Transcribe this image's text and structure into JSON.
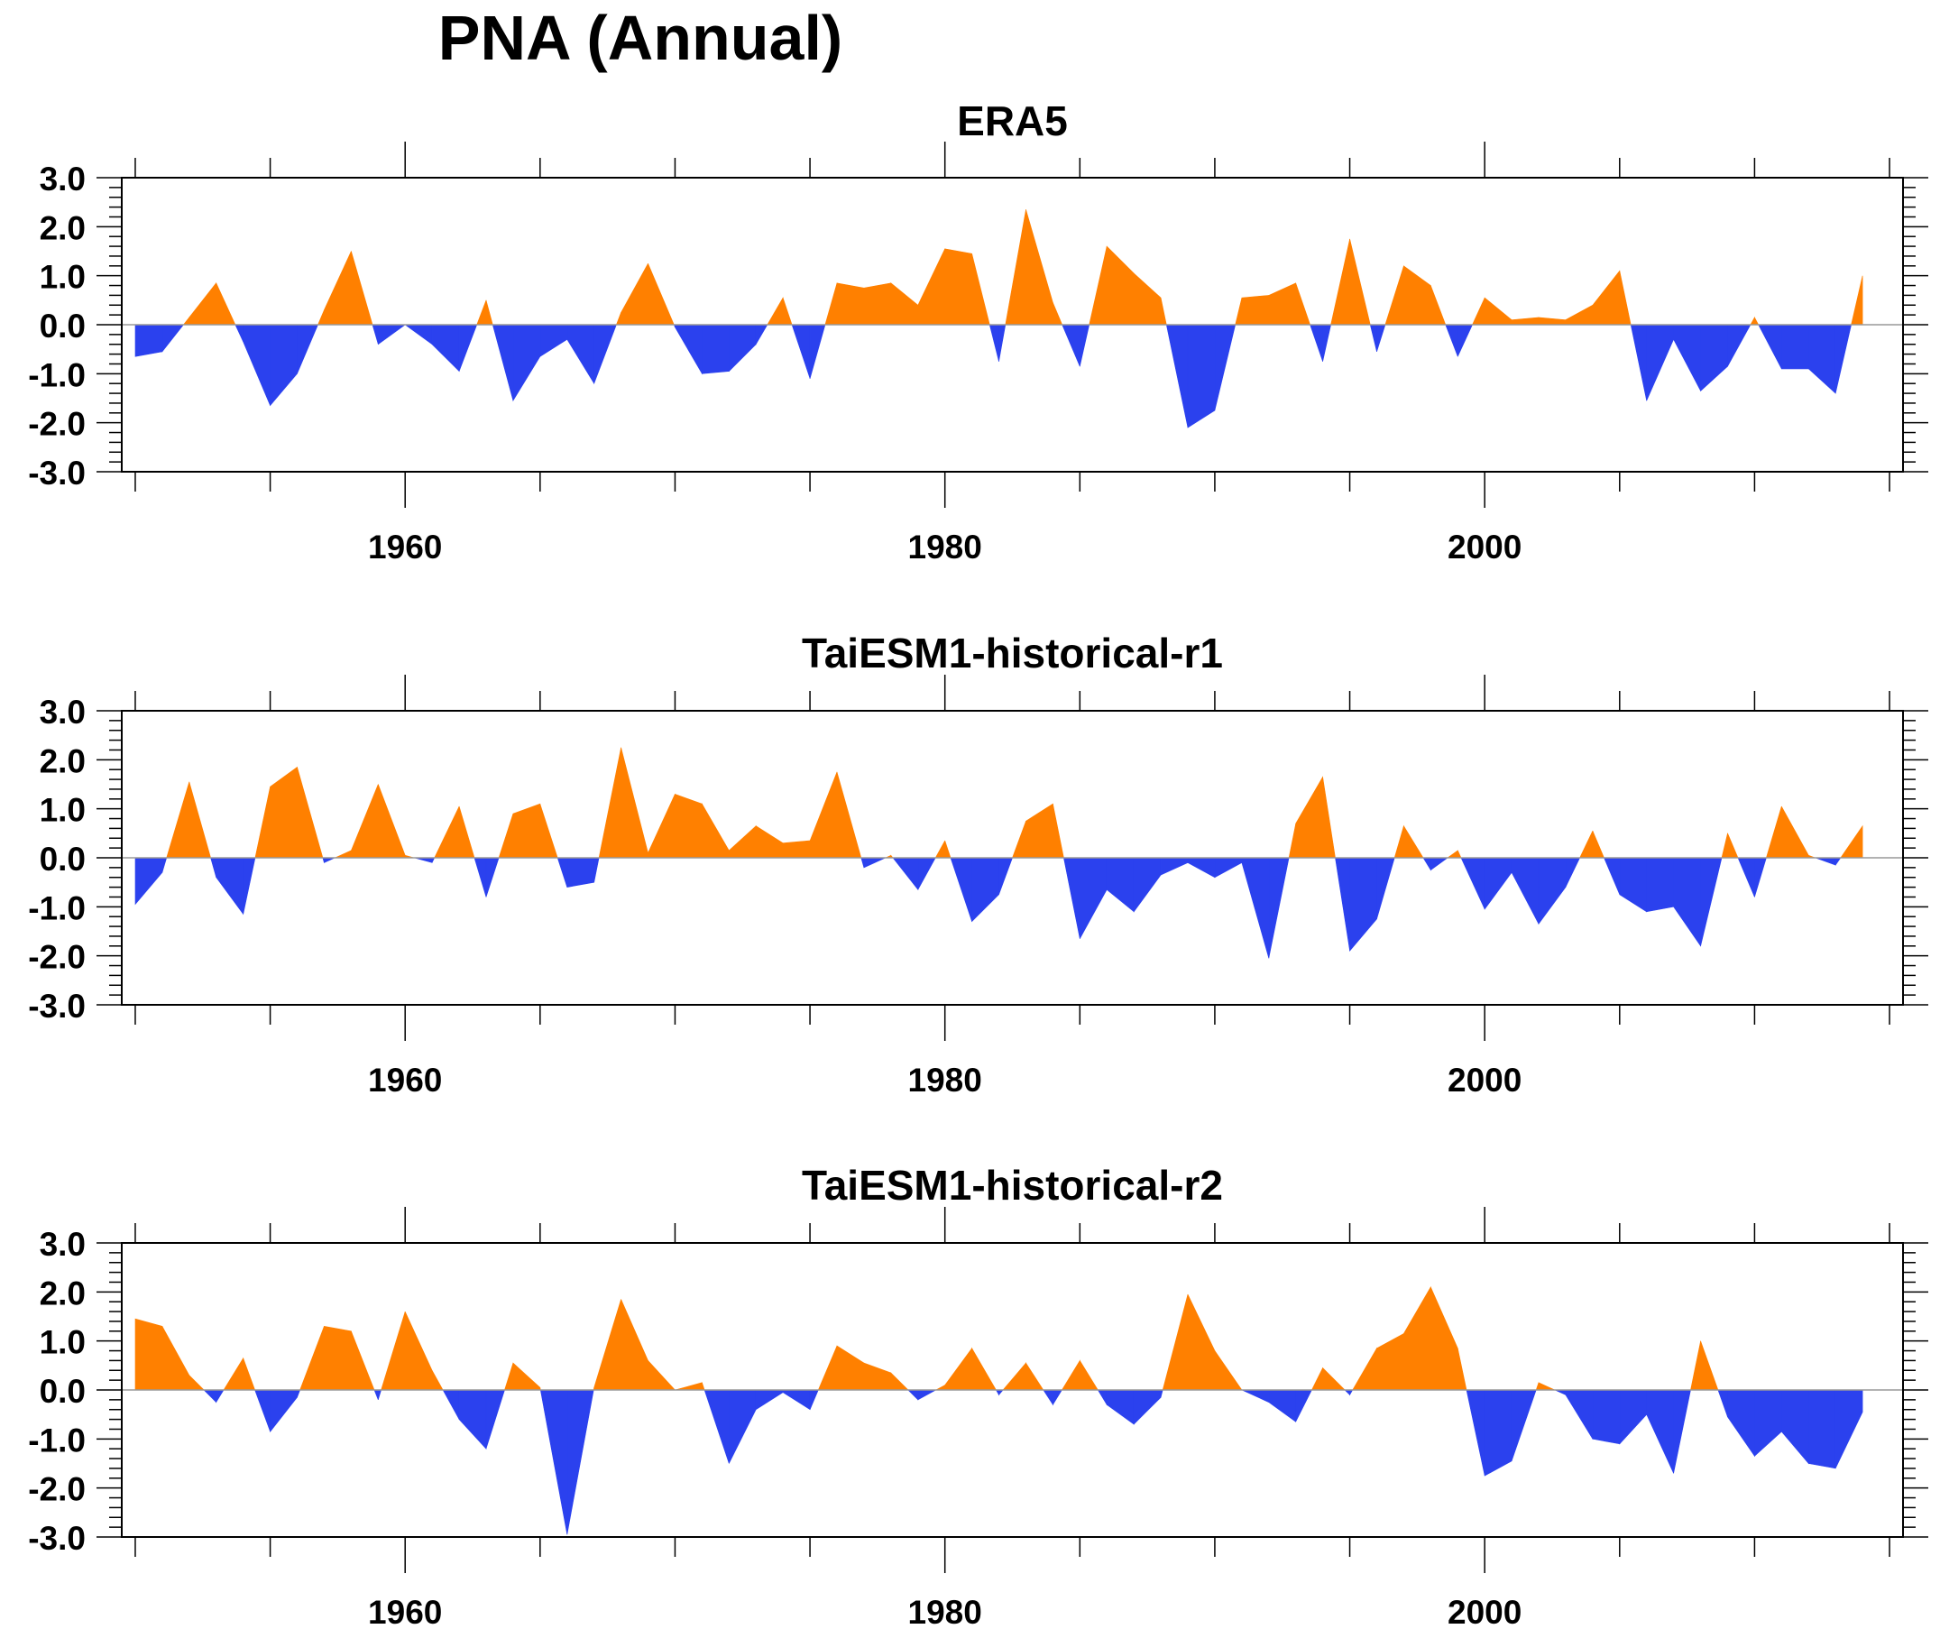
{
  "title": "PNA (Annual)",
  "colors": {
    "positive": "#ff8000",
    "negative": "#2b41ee",
    "axis": "#000000"
  },
  "chart_data": [
    {
      "type": "area",
      "title": "ERA5",
      "xlabel": "",
      "ylabel": "",
      "xlim": [
        1949.5,
        2015.5
      ],
      "ylim": [
        -3,
        3
      ],
      "xticks": [
        1960,
        1980,
        2000
      ],
      "yticks": [
        "-3.0",
        "-2.0",
        "-1.0",
        "0.0",
        "1.0",
        "2.0",
        "3.0"
      ],
      "grid": false,
      "x": [
        1950,
        1951,
        1952,
        1953,
        1954,
        1955,
        1956,
        1957,
        1958,
        1959,
        1960,
        1961,
        1962,
        1963,
        1964,
        1965,
        1966,
        1967,
        1968,
        1969,
        1970,
        1971,
        1972,
        1973,
        1974,
        1975,
        1976,
        1977,
        1978,
        1979,
        1980,
        1981,
        1982,
        1983,
        1984,
        1985,
        1986,
        1987,
        1988,
        1989,
        1990,
        1991,
        1992,
        1993,
        1994,
        1995,
        1996,
        1997,
        1998,
        1999,
        2000,
        2001,
        2002,
        2003,
        2004,
        2005,
        2006,
        2007,
        2008,
        2009,
        2010,
        2011,
        2012,
        2013,
        2014
      ],
      "values": [
        -0.65,
        -0.55,
        0.15,
        0.85,
        -0.35,
        -1.65,
        -1.0,
        0.3,
        1.5,
        -0.4,
        0.0,
        -0.4,
        -0.95,
        0.5,
        -1.55,
        -0.65,
        -0.3,
        -1.2,
        0.25,
        1.25,
        -0.05,
        -1.0,
        -0.95,
        -0.4,
        0.55,
        -1.1,
        0.85,
        0.75,
        0.85,
        0.4,
        1.55,
        1.45,
        -0.75,
        2.35,
        0.45,
        -0.85,
        1.6,
        1.05,
        0.55,
        -2.1,
        -1.75,
        0.55,
        0.6,
        0.85,
        -0.75,
        1.75,
        -0.55,
        1.2,
        0.8,
        -0.65,
        0.55,
        0.1,
        0.15,
        0.1,
        0.4,
        1.1,
        -1.55,
        -0.3,
        -1.35,
        -0.85,
        0.15,
        -0.9,
        -0.9,
        -1.4,
        1.0
      ]
    },
    {
      "type": "area",
      "title": "TaiESM1-historical-r1",
      "xlabel": "",
      "ylabel": "",
      "xlim": [
        1949.5,
        2015.5
      ],
      "ylim": [
        -3,
        3
      ],
      "xticks": [
        1960,
        1980,
        2000
      ],
      "yticks": [
        "-3.0",
        "-2.0",
        "-1.0",
        "0.0",
        "1.0",
        "2.0",
        "3.0"
      ],
      "grid": false,
      "x": [
        1950,
        1951,
        1952,
        1953,
        1954,
        1955,
        1956,
        1957,
        1958,
        1959,
        1960,
        1961,
        1962,
        1963,
        1964,
        1965,
        1966,
        1967,
        1968,
        1969,
        1970,
        1971,
        1972,
        1973,
        1974,
        1975,
        1976,
        1977,
        1978,
        1979,
        1980,
        1981,
        1982,
        1983,
        1984,
        1985,
        1986,
        1987,
        1988,
        1989,
        1990,
        1991,
        1992,
        1993,
        1994,
        1995,
        1996,
        1997,
        1998,
        1999,
        2000,
        2001,
        2002,
        2003,
        2004,
        2005,
        2006,
        2007,
        2008,
        2009,
        2010,
        2011,
        2012,
        2013,
        2014
      ],
      "values": [
        -0.95,
        -0.3,
        1.55,
        -0.4,
        -1.15,
        1.45,
        1.85,
        -0.1,
        0.15,
        1.5,
        0.05,
        -0.1,
        1.05,
        -0.8,
        0.9,
        1.1,
        -0.6,
        -0.5,
        2.25,
        0.1,
        1.3,
        1.1,
        0.15,
        0.65,
        0.3,
        0.35,
        1.75,
        -0.2,
        0.05,
        -0.65,
        0.35,
        -1.3,
        -0.75,
        0.75,
        1.1,
        -1.65,
        -0.65,
        -1.1,
        -0.35,
        -0.1,
        -0.4,
        -0.1,
        -2.05,
        0.7,
        1.65,
        -1.9,
        -1.25,
        0.65,
        -0.25,
        0.15,
        -1.05,
        -0.3,
        -1.35,
        -0.6,
        0.55,
        -0.75,
        -1.1,
        -1.0,
        -1.8,
        0.5,
        -0.8,
        1.05,
        0.05,
        -0.15,
        0.65
      ]
    },
    {
      "type": "area",
      "title": "TaiESM1-historical-r2",
      "xlabel": "",
      "ylabel": "",
      "xlim": [
        1949.5,
        2015.5
      ],
      "ylim": [
        -3,
        3
      ],
      "xticks": [
        1960,
        1980,
        2000
      ],
      "yticks": [
        "-3.0",
        "-2.0",
        "-1.0",
        "0.0",
        "1.0",
        "2.0",
        "3.0"
      ],
      "grid": false,
      "x": [
        1950,
        1951,
        1952,
        1953,
        1954,
        1955,
        1956,
        1957,
        1958,
        1959,
        1960,
        1961,
        1962,
        1963,
        1964,
        1965,
        1966,
        1967,
        1968,
        1969,
        1970,
        1971,
        1972,
        1973,
        1974,
        1975,
        1976,
        1977,
        1978,
        1979,
        1980,
        1981,
        1982,
        1983,
        1984,
        1985,
        1986,
        1987,
        1988,
        1989,
        1990,
        1991,
        1992,
        1993,
        1994,
        1995,
        1996,
        1997,
        1998,
        1999,
        2000,
        2001,
        2002,
        2003,
        2004,
        2005,
        2006,
        2007,
        2008,
        2009,
        2010,
        2011,
        2012,
        2013,
        2014
      ],
      "values": [
        1.45,
        1.3,
        0.3,
        -0.25,
        0.65,
        -0.85,
        -0.15,
        1.3,
        1.2,
        -0.2,
        1.6,
        0.4,
        -0.6,
        -1.2,
        0.55,
        0.05,
        -2.95,
        0.05,
        1.85,
        0.6,
        0.0,
        0.15,
        -1.5,
        -0.4,
        -0.05,
        -0.4,
        0.9,
        0.55,
        0.35,
        -0.2,
        0.1,
        0.85,
        -0.1,
        0.55,
        -0.3,
        0.6,
        -0.3,
        -0.7,
        -0.15,
        1.95,
        0.8,
        0.0,
        -0.25,
        -0.65,
        0.45,
        -0.1,
        0.85,
        1.15,
        2.1,
        0.85,
        -1.75,
        -1.45,
        0.15,
        -0.1,
        -1.0,
        -1.1,
        -0.5,
        -1.7,
        1.0,
        -0.55,
        -1.35,
        -0.85,
        -1.5,
        -1.6,
        -0.45
      ]
    }
  ]
}
